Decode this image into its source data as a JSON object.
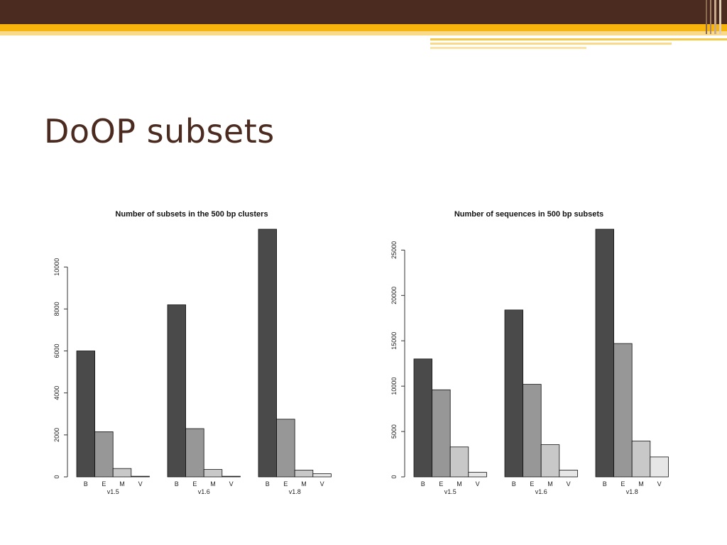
{
  "slide": {
    "title": "DoOP subsets",
    "colors": {
      "header_dark": "#4b2a1f",
      "header_gold": "#f6b40d",
      "title": "#4b2a1f"
    }
  },
  "chart_data": [
    {
      "type": "bar",
      "title": "Number of subsets in the 500 bp clusters",
      "xlabel": "",
      "ylabel": "",
      "groups": [
        "v1.5",
        "v1.6",
        "v1.8"
      ],
      "categories": [
        "B",
        "E",
        "M",
        "V"
      ],
      "series": [
        {
          "group": "v1.5",
          "values": [
            6000,
            2150,
            400,
            30
          ]
        },
        {
          "group": "v1.6",
          "values": [
            8200,
            2300,
            350,
            30
          ]
        },
        {
          "group": "v1.8",
          "values": [
            11800,
            2750,
            320,
            150
          ]
        }
      ],
      "yticks": [
        "0",
        "2000",
        "4000",
        "6000",
        "8000",
        "10000"
      ],
      "ylim": [
        0,
        11800
      ],
      "colors": [
        "#4a4a4a",
        "#979797",
        "#c8c8c8",
        "#e6e6e6"
      ],
      "grid": false
    },
    {
      "type": "bar",
      "title": "Number of sequences in 500 bp subsets",
      "xlabel": "",
      "ylabel": "",
      "groups": [
        "v1.5",
        "v1.6",
        "v1.8"
      ],
      "categories": [
        "B",
        "E",
        "M",
        "V"
      ],
      "series": [
        {
          "group": "v1.5",
          "values": [
            13000,
            9600,
            3300,
            500
          ]
        },
        {
          "group": "v1.6",
          "values": [
            18400,
            10200,
            3550,
            750
          ]
        },
        {
          "group": "v1.8",
          "values": [
            27300,
            14700,
            3950,
            2200
          ]
        }
      ],
      "yticks": [
        "0",
        "5000",
        "10000",
        "15000",
        "20000",
        "25000"
      ],
      "ylim": [
        0,
        27300
      ],
      "colors": [
        "#4a4a4a",
        "#979797",
        "#c8c8c8",
        "#e6e6e6"
      ],
      "grid": false
    }
  ]
}
